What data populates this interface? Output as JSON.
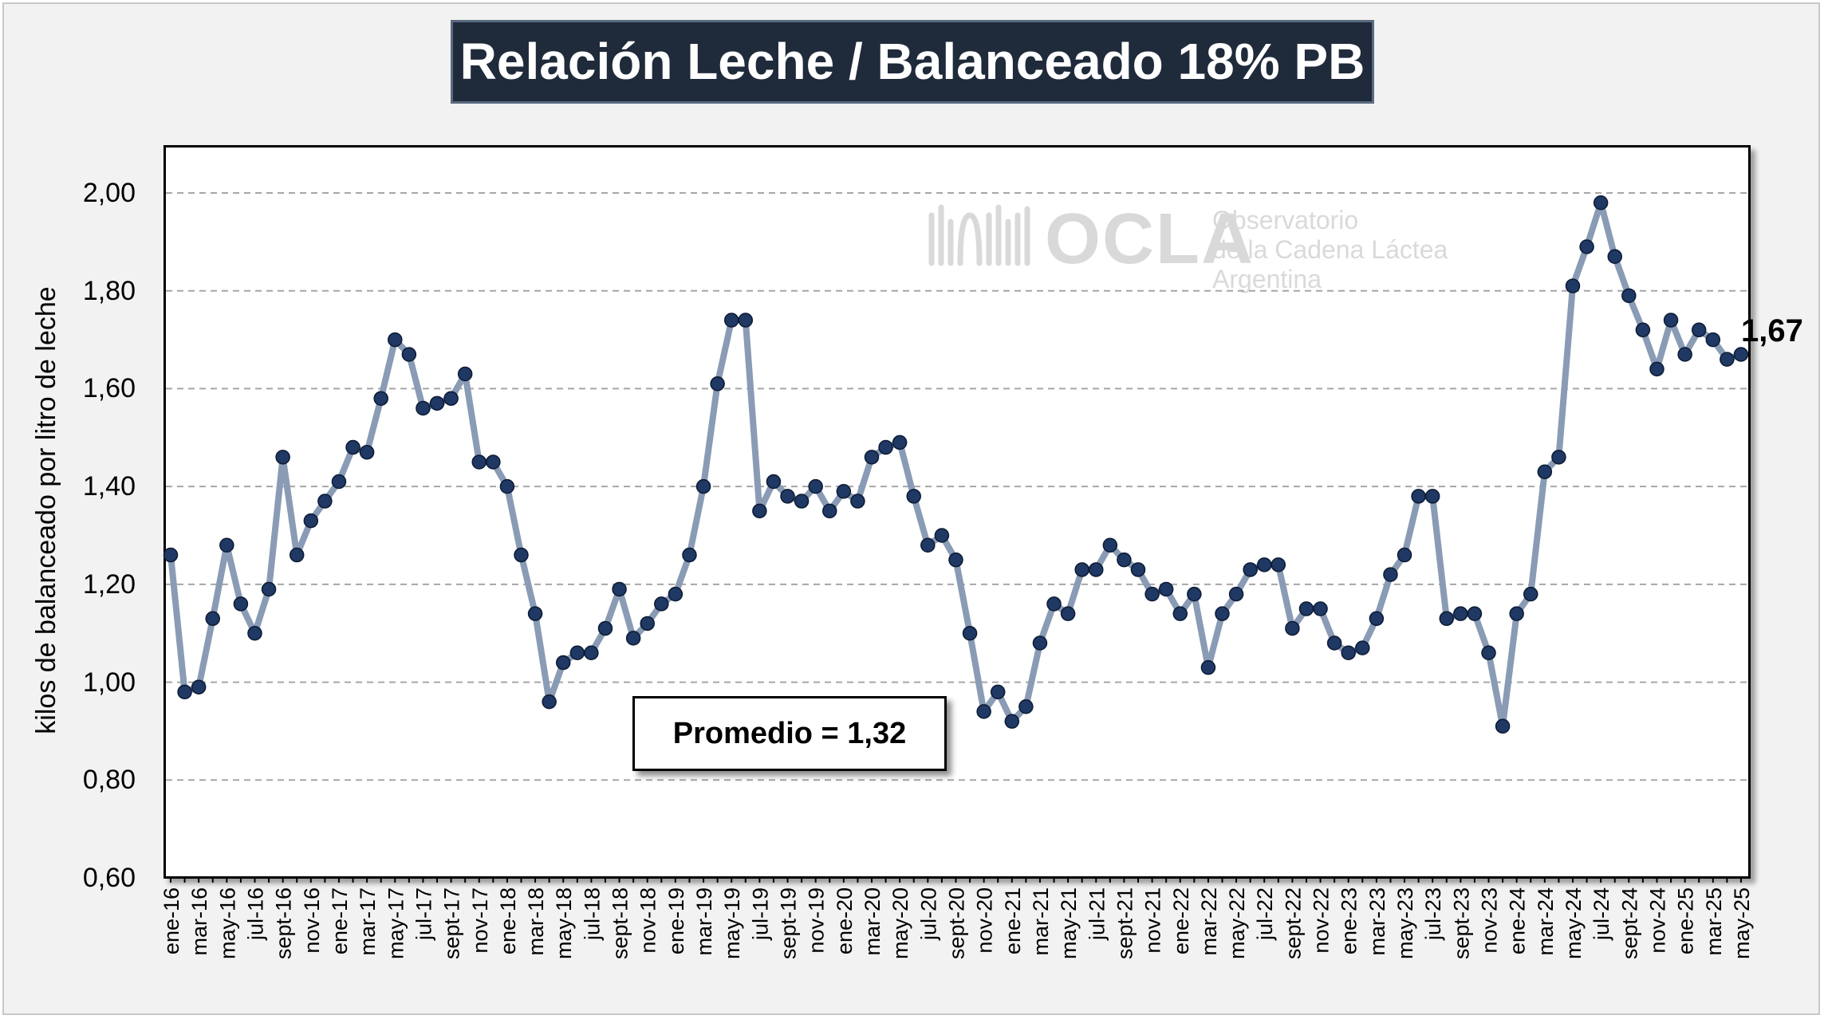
{
  "chart_data": {
    "type": "line",
    "title": "Relación Leche / Balanceado 18% PB",
    "ylabel": "kilos de balanceado por litro de leche",
    "xlabel": "",
    "ylim": [
      0.6,
      2.0
    ],
    "yticks": [
      "0,60",
      "0,80",
      "1,00",
      "1,20",
      "1,40",
      "1,60",
      "1,80",
      "2,00"
    ],
    "ytick_values": [
      0.6,
      0.8,
      1.0,
      1.2,
      1.4,
      1.6,
      1.8,
      2.0
    ],
    "grid": "horizontal dashed",
    "categories": [
      "ene-16",
      "feb-16",
      "mar-16",
      "abr-16",
      "may-16",
      "jun-16",
      "jul-16",
      "ago-16",
      "sept-16",
      "oct-16",
      "nov-16",
      "dic-16",
      "ene-17",
      "feb-17",
      "mar-17",
      "abr-17",
      "may-17",
      "jun-17",
      "jul-17",
      "ago-17",
      "sept-17",
      "oct-17",
      "nov-17",
      "dic-17",
      "ene-18",
      "feb-18",
      "mar-18",
      "abr-18",
      "may-18",
      "jun-18",
      "jul-18",
      "ago-18",
      "sept-18",
      "oct-18",
      "nov-18",
      "dic-18",
      "ene-19",
      "feb-19",
      "mar-19",
      "abr-19",
      "may-19",
      "jun-19",
      "jul-19",
      "ago-19",
      "sept-19",
      "oct-19",
      "nov-19",
      "dic-19",
      "ene-20",
      "feb-20",
      "mar-20",
      "abr-20",
      "may-20",
      "jun-20",
      "jul-20",
      "ago-20",
      "sept-20",
      "oct-20",
      "nov-20",
      "dic-20",
      "ene-21",
      "feb-21",
      "mar-21",
      "abr-21",
      "may-21",
      "jun-21",
      "jul-21",
      "ago-21",
      "sept-21",
      "oct-21",
      "nov-21",
      "dic-21",
      "ene-22",
      "feb-22",
      "mar-22",
      "abr-22",
      "may-22",
      "jun-22",
      "jul-22",
      "ago-22",
      "sept-22",
      "oct-22",
      "nov-22",
      "dic-22",
      "ene-23",
      "feb-23",
      "mar-23",
      "abr-23",
      "may-23",
      "jun-23",
      "jul-23",
      "ago-23",
      "sept-23",
      "oct-23",
      "nov-23",
      "dic-23",
      "ene-24",
      "feb-24",
      "mar-24",
      "abr-24",
      "may-24",
      "jun-24",
      "jul-24",
      "ago-24",
      "sept-24",
      "oct-24",
      "nov-24",
      "dic-24",
      "ene-25",
      "feb-25",
      "mar-25",
      "abr-25",
      "may-25"
    ],
    "series": [
      {
        "values": [
          1.26,
          0.98,
          0.99,
          1.13,
          1.28,
          1.16,
          1.1,
          1.19,
          1.46,
          1.26,
          1.33,
          1.37,
          1.41,
          1.48,
          1.47,
          1.58,
          1.7,
          1.67,
          1.56,
          1.57,
          1.58,
          1.63,
          1.45,
          1.45,
          1.4,
          1.26,
          1.14,
          0.96,
          1.04,
          1.06,
          1.06,
          1.11,
          1.19,
          1.09,
          1.12,
          1.16,
          1.18,
          1.26,
          1.4,
          1.61,
          1.74,
          1.74,
          1.35,
          1.41,
          1.38,
          1.37,
          1.4,
          1.35,
          1.39,
          1.37,
          1.46,
          1.48,
          1.49,
          1.38,
          1.28,
          1.3,
          1.25,
          1.1,
          0.94,
          0.98,
          0.92,
          0.95,
          1.08,
          1.16,
          1.14,
          1.23,
          1.23,
          1.28,
          1.25,
          1.23,
          1.18,
          1.19,
          1.14,
          1.18,
          1.03,
          1.14,
          1.18,
          1.23,
          1.24,
          1.24,
          1.11,
          1.15,
          1.15,
          1.08,
          1.06,
          1.07,
          1.13,
          1.22,
          1.26,
          1.38,
          1.38,
          1.13,
          1.14,
          1.14,
          1.06,
          0.91,
          1.14,
          1.18,
          1.43,
          1.46,
          1.81,
          1.89,
          1.98,
          1.87,
          1.79,
          1.72,
          1.64,
          1.74,
          1.67,
          1.72,
          1.7,
          1.66,
          1.67
        ]
      }
    ],
    "last_value_label": "1,67",
    "average_label": "Promedio = 1,32",
    "colors": {
      "line": "#8a9bb5",
      "marker": "#1f3864",
      "title_bg": "#1f2a3a"
    }
  },
  "watermark": {
    "brand": "OCLA",
    "line1": "Observatorio",
    "line2": "de la Cadena Láctea",
    "line3": "Argentina"
  }
}
